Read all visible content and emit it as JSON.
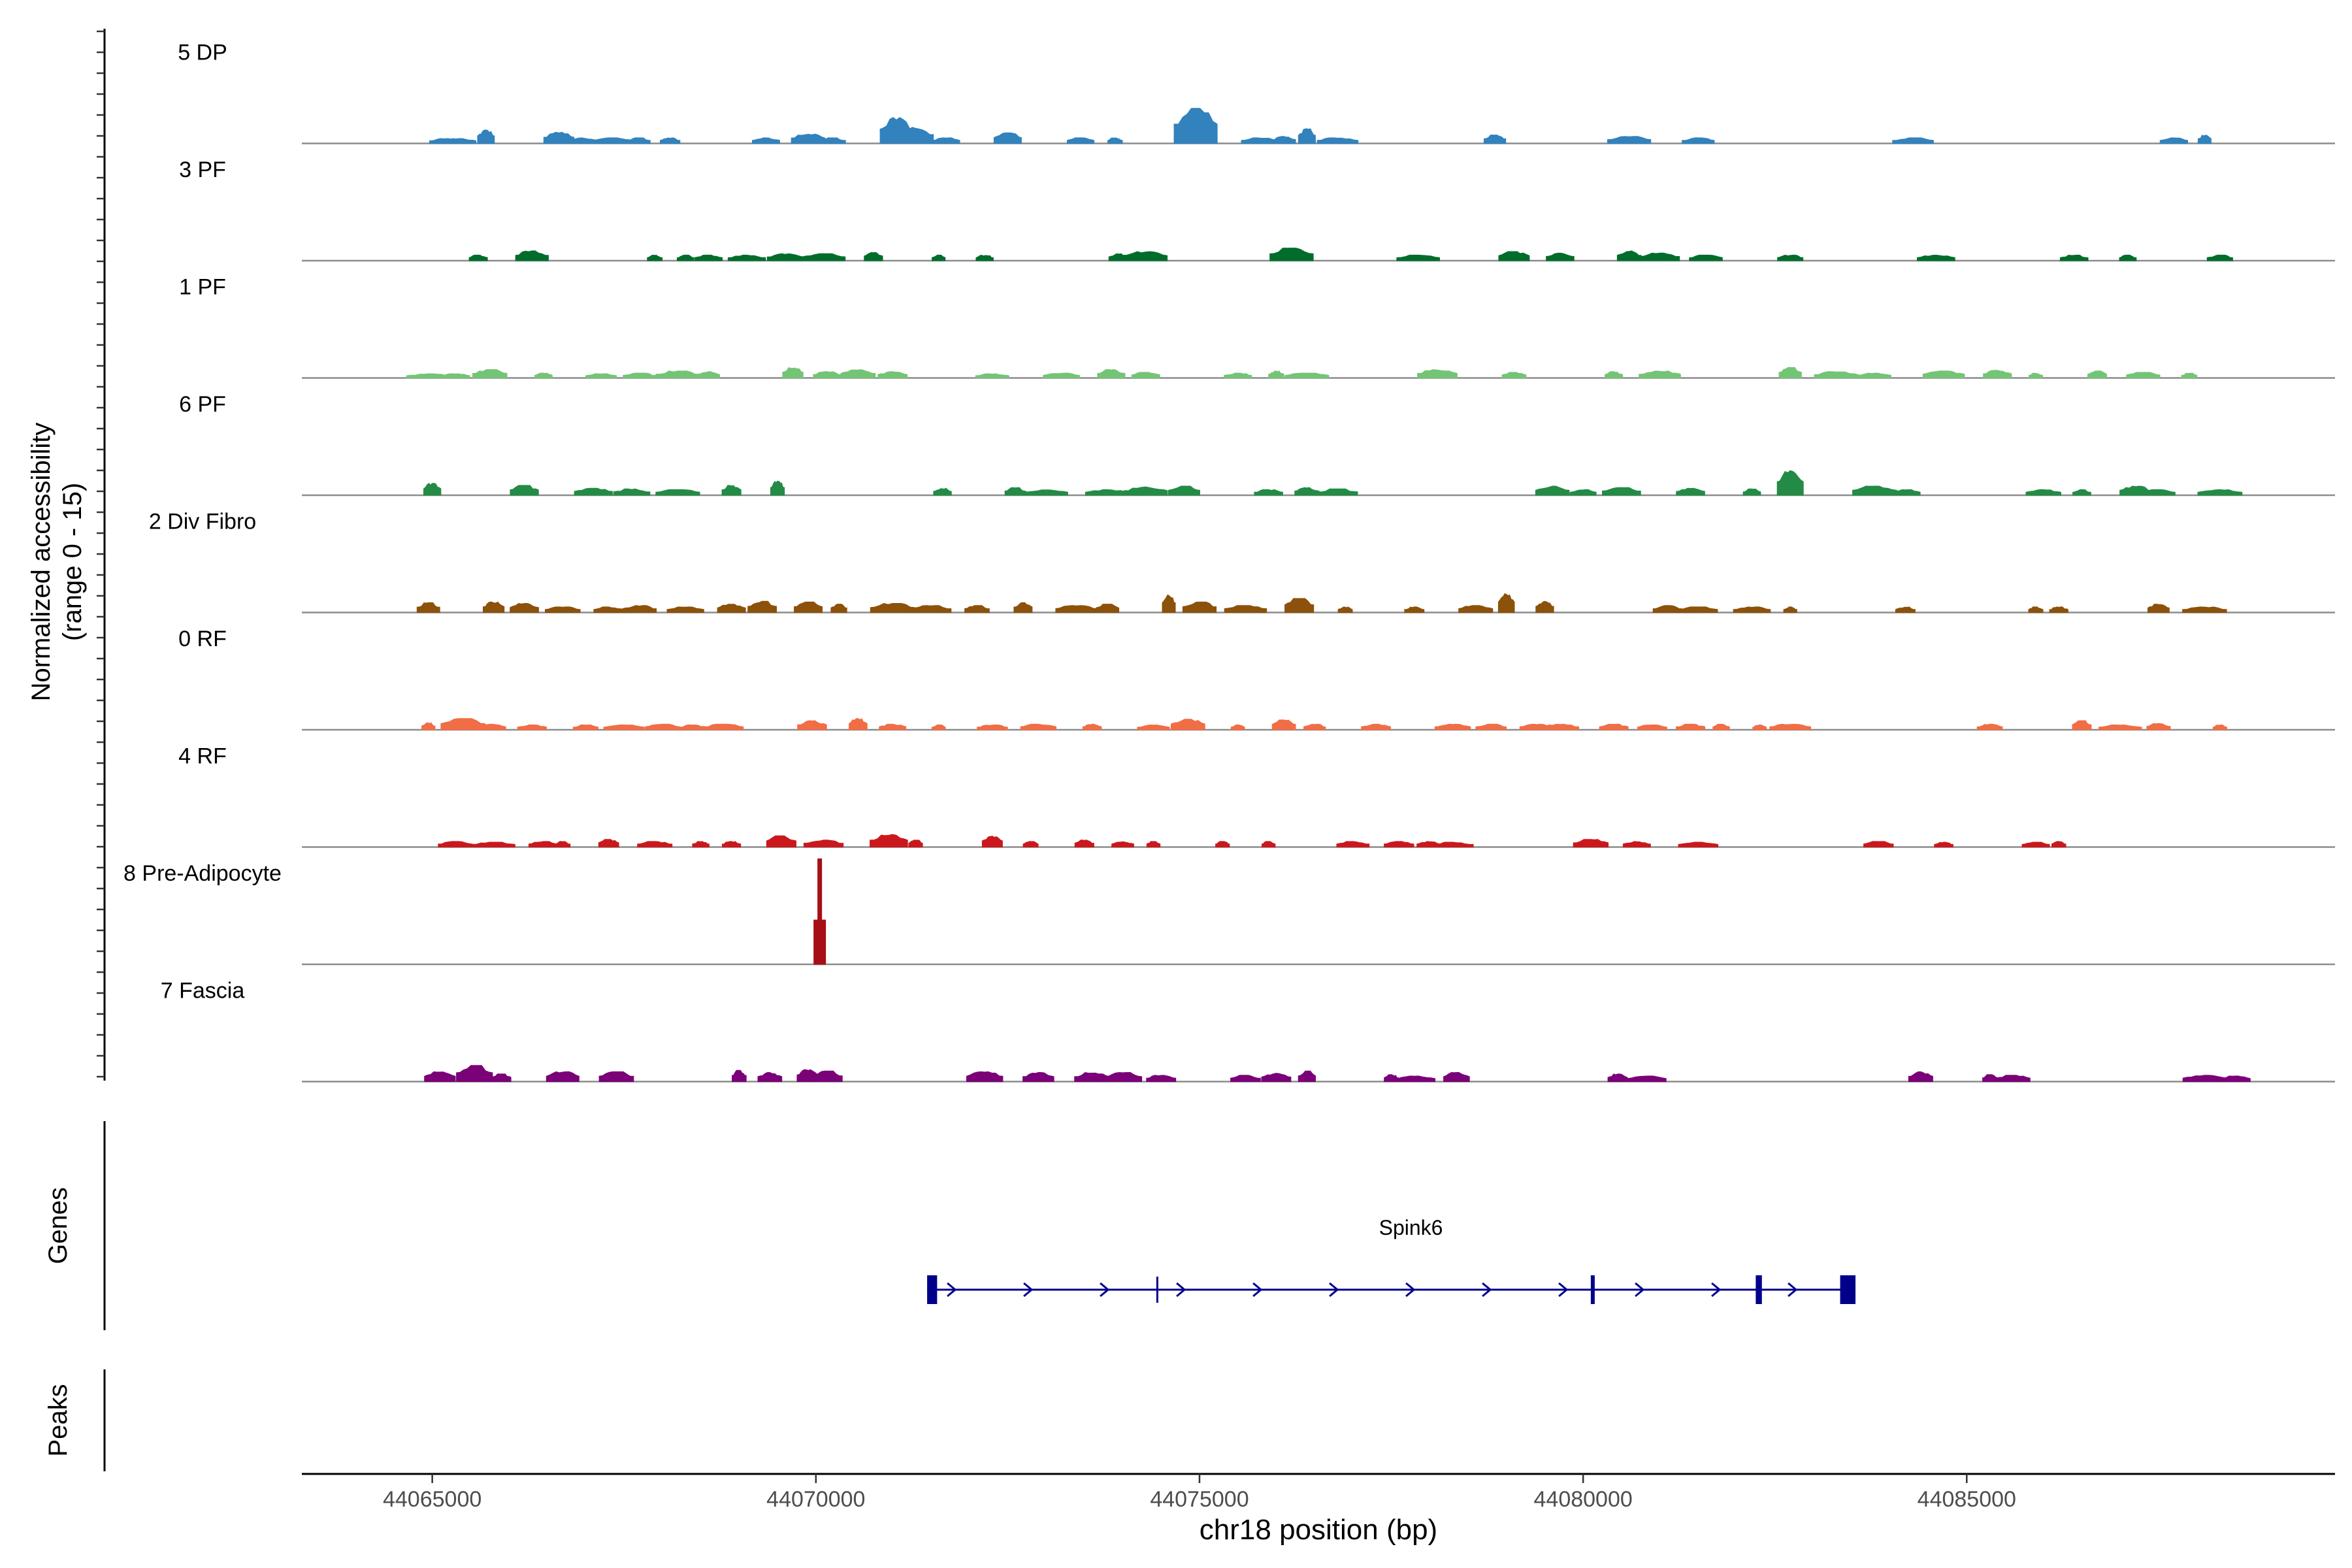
{
  "chart_data": {
    "type": "area",
    "title": "",
    "ylabel_line1": "Normalized accessibility",
    "ylabel_line2": "(range 0 - 15)",
    "ylim": [
      0,
      15
    ],
    "xlabel": "chr18 position (bp)",
    "xlim": [
      44063300,
      44089800
    ],
    "xticks": [
      44065000,
      44070000,
      44075000,
      44080000,
      44085000
    ],
    "xtick_labels": [
      "44065000",
      "44070000",
      "44075000",
      "44080000",
      "44085000"
    ],
    "genes_label": "Genes",
    "peaks_label": "Peaks",
    "tracks": [
      {
        "name": "5 DP",
        "color": "#3182BD",
        "peaks": [
          [
            44065150,
            0.7
          ],
          [
            44065350,
            0.7
          ],
          [
            44065700,
            1.9
          ],
          [
            44066650,
            1.6
          ],
          [
            44066950,
            0.8
          ],
          [
            44067350,
            0.8
          ],
          [
            44067700,
            0.8
          ],
          [
            44068100,
            0.8
          ],
          [
            44069350,
            0.8
          ],
          [
            44069900,
            1.4
          ],
          [
            44070200,
            0.8
          ],
          [
            44071050,
            3.7
          ],
          [
            44071300,
            2.3
          ],
          [
            44071700,
            0.8
          ],
          [
            44072500,
            1.5
          ],
          [
            44073450,
            0.8
          ],
          [
            44073900,
            0.8
          ],
          [
            44074950,
            5.0
          ],
          [
            44075800,
            0.8
          ],
          [
            44076100,
            1.0
          ],
          [
            44076400,
            2.1
          ],
          [
            44076800,
            0.8
          ],
          [
            44078850,
            1.2
          ],
          [
            44080600,
            1.0
          ],
          [
            44081500,
            0.8
          ],
          [
            44084300,
            0.8
          ],
          [
            44087700,
            0.8
          ],
          [
            44088100,
            1.2
          ]
        ]
      },
      {
        "name": "3 PF",
        "color": "#006D2C",
        "peaks": [
          [
            44065600,
            0.8
          ],
          [
            44066300,
            1.4
          ],
          [
            44067900,
            0.8
          ],
          [
            44068300,
            0.8
          ],
          [
            44068600,
            0.8
          ],
          [
            44069100,
            0.8
          ],
          [
            44069600,
            1.0
          ],
          [
            44070100,
            1.0
          ],
          [
            44070750,
            1.2
          ],
          [
            44071600,
            0.8
          ],
          [
            44072200,
            0.8
          ],
          [
            44073950,
            1.0
          ],
          [
            44074300,
            1.3
          ],
          [
            44076200,
            1.8
          ],
          [
            44077850,
            0.8
          ],
          [
            44079100,
            1.3
          ],
          [
            44079700,
            1.1
          ],
          [
            44080600,
            1.4
          ],
          [
            44081000,
            1.1
          ],
          [
            44081600,
            0.8
          ],
          [
            44082700,
            0.8
          ],
          [
            44084600,
            0.8
          ],
          [
            44086400,
            0.8
          ],
          [
            44087100,
            0.8
          ],
          [
            44088300,
            0.8
          ]
        ]
      },
      {
        "name": "1 PF",
        "color": "#74C476",
        "peaks": [
          [
            44064950,
            0.6
          ],
          [
            44065300,
            0.6
          ],
          [
            44065750,
            1.2
          ],
          [
            44066450,
            0.7
          ],
          [
            44067200,
            0.6
          ],
          [
            44067700,
            0.7
          ],
          [
            44068200,
            1.0
          ],
          [
            44068600,
            0.9
          ],
          [
            44069700,
            1.5
          ],
          [
            44070150,
            0.9
          ],
          [
            44070550,
            1.2
          ],
          [
            44071000,
            0.9
          ],
          [
            44072300,
            0.6
          ],
          [
            44073200,
            0.7
          ],
          [
            44073850,
            1.2
          ],
          [
            44074300,
            0.8
          ],
          [
            44075500,
            0.7
          ],
          [
            44076000,
            1.0
          ],
          [
            44076400,
            0.7
          ],
          [
            44078100,
            1.2
          ],
          [
            44079100,
            0.8
          ],
          [
            44080400,
            0.9
          ],
          [
            44081000,
            1.0
          ],
          [
            44082700,
            1.5
          ],
          [
            44083300,
            0.9
          ],
          [
            44083800,
            0.7
          ],
          [
            44084700,
            1.0
          ],
          [
            44085400,
            1.1
          ],
          [
            44085900,
            0.7
          ],
          [
            44086700,
            1.0
          ],
          [
            44087300,
            0.8
          ],
          [
            44087900,
            0.7
          ]
        ]
      },
      {
        "name": "6 PF",
        "color": "#238B45",
        "peaks": [
          [
            44065000,
            1.7
          ],
          [
            44066200,
            1.4
          ],
          [
            44067100,
            1.0
          ],
          [
            44067600,
            0.9
          ],
          [
            44068200,
            0.8
          ],
          [
            44068900,
            1.4
          ],
          [
            44069500,
            2.0
          ],
          [
            44071650,
            1.0
          ],
          [
            44072600,
            1.1
          ],
          [
            44073000,
            0.8
          ],
          [
            44073800,
            0.8
          ],
          [
            44074300,
            1.2
          ],
          [
            44074800,
            1.3
          ],
          [
            44075900,
            0.8
          ],
          [
            44076400,
            1.1
          ],
          [
            44076800,
            0.9
          ],
          [
            44079600,
            1.3
          ],
          [
            44080000,
            0.8
          ],
          [
            44080500,
            1.1
          ],
          [
            44081400,
            1.0
          ],
          [
            44082200,
            0.9
          ],
          [
            44082700,
            3.5
          ],
          [
            44083800,
            1.3
          ],
          [
            44084200,
            0.8
          ],
          [
            44086000,
            0.8
          ],
          [
            44086500,
            0.8
          ],
          [
            44087200,
            1.3
          ],
          [
            44087500,
            0.8
          ],
          [
            44088300,
            0.8
          ]
        ]
      },
      {
        "name": "2 Div Fibro",
        "color": "#8C510A",
        "peaks": [
          [
            44064950,
            1.4
          ],
          [
            44065800,
            1.5
          ],
          [
            44066200,
            1.3
          ],
          [
            44066700,
            0.8
          ],
          [
            44067300,
            0.8
          ],
          [
            44067700,
            1.0
          ],
          [
            44068300,
            0.8
          ],
          [
            44068900,
            1.2
          ],
          [
            44069300,
            1.6
          ],
          [
            44069900,
            1.5
          ],
          [
            44070300,
            1.2
          ],
          [
            44071000,
            1.3
          ],
          [
            44071500,
            1.0
          ],
          [
            44072100,
            1.0
          ],
          [
            44072700,
            1.4
          ],
          [
            44073400,
            1.0
          ],
          [
            44073800,
            1.2
          ],
          [
            44074600,
            2.5
          ],
          [
            44075000,
            1.5
          ],
          [
            44075600,
            1.0
          ],
          [
            44076300,
            2.0
          ],
          [
            44076900,
            0.8
          ],
          [
            44077800,
            0.8
          ],
          [
            44078600,
            1.0
          ],
          [
            44079000,
            2.7
          ],
          [
            44079500,
            1.6
          ],
          [
            44081100,
            1.0
          ],
          [
            44081500,
            0.8
          ],
          [
            44082200,
            0.8
          ],
          [
            44082700,
            0.8
          ],
          [
            44084200,
            0.8
          ],
          [
            44085900,
            0.8
          ],
          [
            44086200,
            0.8
          ],
          [
            44087500,
            1.2
          ],
          [
            44088100,
            0.8
          ]
        ]
      },
      {
        "name": "0 RF",
        "color": "#F16D45",
        "peaks": [
          [
            44064950,
            1.0
          ],
          [
            44065400,
            1.6
          ],
          [
            44065750,
            0.8
          ],
          [
            44066300,
            0.7
          ],
          [
            44067000,
            0.7
          ],
          [
            44067500,
            0.7
          ],
          [
            44068000,
            0.8
          ],
          [
            44068400,
            0.7
          ],
          [
            44068800,
            0.8
          ],
          [
            44069950,
            1.3
          ],
          [
            44070550,
            1.6
          ],
          [
            44071000,
            0.8
          ],
          [
            44071600,
            0.7
          ],
          [
            44072300,
            0.7
          ],
          [
            44072900,
            0.8
          ],
          [
            44073600,
            0.8
          ],
          [
            44074400,
            0.7
          ],
          [
            44074850,
            1.5
          ],
          [
            44075500,
            0.7
          ],
          [
            44076100,
            1.4
          ],
          [
            44076500,
            0.8
          ],
          [
            44077300,
            0.8
          ],
          [
            44078300,
            0.8
          ],
          [
            44078800,
            0.8
          ],
          [
            44079400,
            0.8
          ],
          [
            44079700,
            0.8
          ],
          [
            44080400,
            0.8
          ],
          [
            44080900,
            0.7
          ],
          [
            44081400,
            0.8
          ],
          [
            44081800,
            0.8
          ],
          [
            44082300,
            0.7
          ],
          [
            44082700,
            0.8
          ],
          [
            44085300,
            0.8
          ],
          [
            44086500,
            1.3
          ],
          [
            44087000,
            0.7
          ],
          [
            44087500,
            0.9
          ],
          [
            44088300,
            0.7
          ]
        ]
      },
      {
        "name": "4 RF",
        "color": "#CB181D",
        "peaks": [
          [
            44065300,
            0.8
          ],
          [
            44065800,
            0.7
          ],
          [
            44066450,
            0.8
          ],
          [
            44066700,
            0.8
          ],
          [
            44067300,
            1.1
          ],
          [
            44067900,
            0.8
          ],
          [
            44068500,
            0.8
          ],
          [
            44068900,
            0.8
          ],
          [
            44069550,
            1.6
          ],
          [
            44070100,
            1.0
          ],
          [
            44070950,
            1.8
          ],
          [
            44071300,
            1.0
          ],
          [
            44072300,
            1.6
          ],
          [
            44072800,
            0.8
          ],
          [
            44073500,
            1.0
          ],
          [
            44074000,
            0.8
          ],
          [
            44074400,
            0.8
          ],
          [
            44075300,
            0.8
          ],
          [
            44075900,
            0.8
          ],
          [
            44077000,
            0.8
          ],
          [
            44077600,
            0.8
          ],
          [
            44078000,
            0.8
          ],
          [
            44078300,
            0.7
          ],
          [
            44080100,
            1.1
          ],
          [
            44080700,
            0.8
          ],
          [
            44081500,
            0.7
          ],
          [
            44083850,
            0.8
          ],
          [
            44084700,
            0.7
          ],
          [
            44085900,
            0.7
          ],
          [
            44086200,
            0.8
          ]
        ]
      },
      {
        "name": "8 Pre-Adipocyte",
        "color": "#A50F15",
        "peaks": [
          [
            44070050,
            15.0
          ]
        ]
      },
      {
        "name": "7 Fascia",
        "color": "#7A0177",
        "peaks": [
          [
            44065100,
            1.4
          ],
          [
            44065550,
            2.3
          ],
          [
            44065900,
            1.1
          ],
          [
            44066700,
            1.4
          ],
          [
            44067400,
            1.4
          ],
          [
            44069000,
            1.6
          ],
          [
            44069400,
            1.3
          ],
          [
            44069900,
            1.7
          ],
          [
            44070150,
            1.5
          ],
          [
            44072200,
            1.4
          ],
          [
            44072900,
            1.3
          ],
          [
            44073600,
            1.3
          ],
          [
            44074000,
            1.3
          ],
          [
            44074500,
            0.9
          ],
          [
            44075600,
            0.9
          ],
          [
            44076000,
            1.2
          ],
          [
            44076400,
            1.5
          ],
          [
            44077500,
            1.0
          ],
          [
            44077800,
            0.8
          ],
          [
            44078350,
            1.3
          ],
          [
            44080450,
            1.1
          ],
          [
            44080800,
            0.8
          ],
          [
            44084400,
            1.4
          ],
          [
            44085300,
            1.0
          ],
          [
            44085600,
            0.9
          ],
          [
            44088100,
            0.9
          ],
          [
            44088500,
            0.8
          ]
        ]
      }
    ],
    "gene": {
      "name": "Spink6",
      "color": "#00008B",
      "start": 44071450,
      "end": 44083550,
      "exons": [
        [
          44071450,
          44071580
        ],
        [
          44080100,
          44080150
        ],
        [
          44082250,
          44082330
        ],
        [
          44083350,
          44083550
        ]
      ],
      "splits": [
        44074450
      ]
    }
  }
}
